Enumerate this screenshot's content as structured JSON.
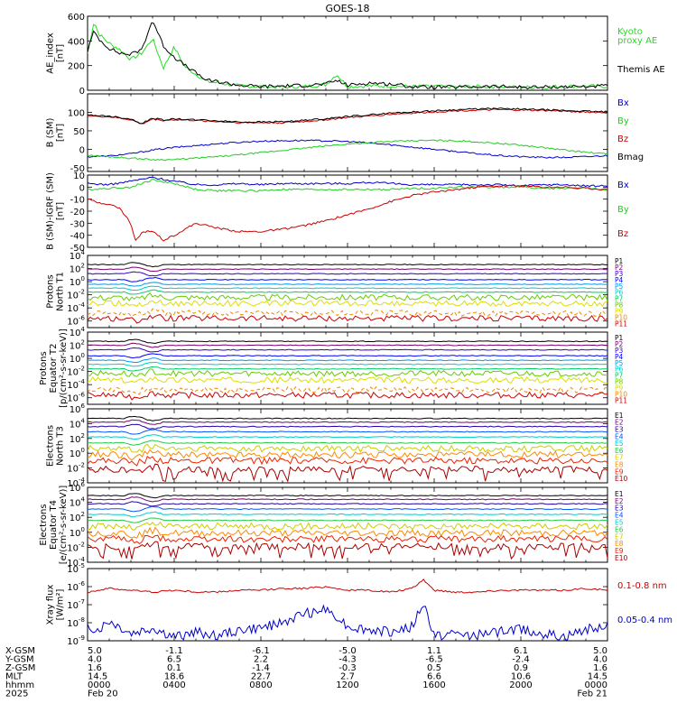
{
  "title": "GOES-18",
  "chart_data": [
    {
      "id": "ae",
      "type": "line",
      "ylabel": [
        "AE_index",
        "[nT]"
      ],
      "ylim": [
        0,
        600
      ],
      "ticks": [
        0,
        200,
        400,
        600
      ],
      "legend": [
        {
          "text": "Kyoto",
          "color": "#22dd22"
        },
        {
          "text": "proxy AE",
          "color": "#22dd22"
        },
        {
          "text": "Themis AE",
          "color": "#000000"
        }
      ],
      "series": [
        {
          "name": "Kyoto proxy AE",
          "color": "#22dd22",
          "x": [
            0,
            0.3,
            0.5,
            1,
            1.5,
            2,
            2.5,
            3,
            3.5,
            4,
            4.5,
            5,
            5.5,
            6,
            7,
            8,
            9,
            10,
            11,
            11.5,
            12,
            13,
            14,
            15,
            16,
            17,
            18,
            19,
            20,
            21,
            22,
            23,
            24
          ],
          "y": [
            300,
            560,
            460,
            380,
            330,
            250,
            300,
            420,
            180,
            350,
            190,
            130,
            70,
            60,
            35,
            30,
            25,
            30,
            45,
            130,
            30,
            35,
            35,
            30,
            30,
            25,
            30,
            30,
            25,
            25,
            30,
            35,
            30
          ]
        },
        {
          "name": "Themis AE",
          "color": "#000000",
          "x": [
            0,
            0.3,
            0.5,
            1,
            1.5,
            2,
            2.5,
            3,
            3.5,
            4,
            4.5,
            5,
            5.5,
            6,
            7,
            8,
            9,
            10,
            11,
            11.5,
            12,
            13,
            14,
            15,
            16,
            17,
            18,
            19,
            20,
            21,
            22,
            23,
            24
          ],
          "y": [
            320,
            480,
            420,
            340,
            300,
            290,
            330,
            570,
            360,
            270,
            200,
            140,
            80,
            70,
            40,
            30,
            35,
            40,
            50,
            80,
            40,
            60,
            50,
            30,
            25,
            25,
            30,
            30,
            25,
            25,
            30,
            30,
            35
          ]
        }
      ]
    },
    {
      "id": "bsm",
      "type": "line",
      "ylabel": [
        "B (SM)",
        "[nT]"
      ],
      "ylim": [
        -60,
        150
      ],
      "ticks": [
        -50,
        0,
        50,
        100
      ],
      "legend": [
        {
          "text": "Bx",
          "color": "#0000cc"
        },
        {
          "text": "By",
          "color": "#22cc22"
        },
        {
          "text": "Bz",
          "color": "#cc0000"
        },
        {
          "text": "Bmag",
          "color": "#000000"
        }
      ],
      "series": [
        {
          "name": "Bx",
          "color": "#0000cc",
          "x": [
            0,
            1,
            2,
            3,
            4,
            5,
            6,
            7,
            8,
            9,
            10,
            11,
            12,
            13,
            14,
            15,
            16,
            17,
            18,
            19,
            20,
            21,
            22,
            23,
            24
          ],
          "y": [
            -20,
            -18,
            -12,
            -2,
            5,
            10,
            15,
            19,
            22,
            23,
            24,
            23,
            21,
            17,
            12,
            6,
            0,
            -6,
            -12,
            -17,
            -20,
            -22,
            -22,
            -20,
            -17
          ]
        },
        {
          "name": "By",
          "color": "#22cc22",
          "x": [
            0,
            1,
            2,
            3,
            4,
            5,
            6,
            7,
            8,
            9,
            10,
            11,
            12,
            13,
            14,
            15,
            16,
            17,
            18,
            19,
            20,
            21,
            22,
            23,
            24
          ],
          "y": [
            -16,
            -20,
            -24,
            -28,
            -28,
            -24,
            -20,
            -15,
            -9,
            -3,
            3,
            9,
            14,
            18,
            21,
            23,
            24,
            23,
            20,
            16,
            11,
            5,
            -2,
            -8,
            -13
          ]
        },
        {
          "name": "Bz",
          "color": "#cc0000",
          "x": [
            0,
            1,
            2,
            2.5,
            3,
            3.5,
            4,
            5,
            6,
            7,
            8,
            9,
            10,
            11,
            12,
            13,
            14,
            15,
            16,
            17,
            18,
            19,
            20,
            21,
            22,
            23,
            24
          ],
          "y": [
            90,
            88,
            80,
            68,
            82,
            78,
            80,
            78,
            75,
            72,
            72,
            72,
            75,
            80,
            86,
            90,
            95,
            98,
            101,
            104,
            106,
            107,
            106,
            105,
            103,
            101,
            99
          ]
        },
        {
          "name": "Bmag",
          "color": "#000000",
          "x": [
            0,
            1,
            2,
            2.5,
            3,
            3.5,
            4,
            5,
            6,
            7,
            8,
            9,
            10,
            11,
            12,
            13,
            14,
            15,
            16,
            17,
            18,
            19,
            20,
            21,
            22,
            23,
            24
          ],
          "y": [
            92,
            90,
            82,
            70,
            84,
            80,
            82,
            80,
            77,
            74,
            74,
            75,
            78,
            83,
            89,
            93,
            98,
            101,
            104,
            107,
            109,
            110,
            109,
            107,
            105,
            103,
            101
          ]
        }
      ]
    },
    {
      "id": "bdiff",
      "type": "line",
      "ylabel": [
        "B (SM)-IGRF (SM)",
        "[nT]"
      ],
      "ylim": [
        -50,
        10
      ],
      "ticks": [
        -50,
        -40,
        -30,
        -20,
        -10,
        0,
        10
      ],
      "legend": [
        {
          "text": "Bx",
          "color": "#0000cc"
        },
        {
          "text": "By",
          "color": "#22cc22"
        },
        {
          "text": "Bz",
          "color": "#cc0000"
        }
      ],
      "series": [
        {
          "name": "Bx",
          "color": "#0000cc",
          "x": [
            0,
            1,
            2,
            3,
            4,
            5,
            6,
            7,
            8,
            9,
            10,
            11,
            12,
            13,
            14,
            15,
            16,
            17,
            18,
            19,
            20,
            21,
            22,
            23,
            24
          ],
          "y": [
            3,
            2,
            5,
            8,
            5,
            2,
            2,
            3,
            2,
            3,
            3,
            3,
            3,
            4,
            3,
            2,
            2,
            2,
            2,
            2,
            1,
            2,
            2,
            1,
            1
          ]
        },
        {
          "name": "By",
          "color": "#22cc22",
          "x": [
            0,
            1,
            2,
            3,
            4,
            5,
            6,
            7,
            8,
            9,
            10,
            11,
            12,
            13,
            14,
            15,
            16,
            17,
            18,
            19,
            20,
            21,
            22,
            23,
            24
          ],
          "y": [
            -2,
            -1,
            0,
            6,
            3,
            -2,
            -3,
            -3,
            -3,
            -2,
            -2,
            -2,
            -2,
            -2,
            -2,
            -1,
            -1,
            0,
            0,
            0,
            0,
            -1,
            -1,
            -1,
            -2
          ]
        },
        {
          "name": "Bz",
          "color": "#cc0000",
          "x": [
            0,
            0.5,
            1,
            1.5,
            2,
            2.2,
            2.5,
            3,
            3.5,
            4,
            5,
            6,
            7,
            8,
            9,
            10,
            11,
            12,
            13,
            14,
            15,
            16,
            17,
            18,
            19,
            20,
            21,
            22,
            23,
            24
          ],
          "y": [
            -10,
            -13,
            -14,
            -18,
            -30,
            -45,
            -38,
            -36,
            -44,
            -40,
            -30,
            -34,
            -37,
            -37,
            -35,
            -32,
            -28,
            -23,
            -18,
            -12,
            -7,
            -4,
            -2,
            0,
            1,
            1,
            0,
            0,
            -1,
            -2
          ]
        }
      ]
    },
    {
      "id": "p_north",
      "type": "line",
      "log": true,
      "ylabel": [
        "Protons",
        "North T1"
      ],
      "ylim_exp": [
        -7,
        4
      ],
      "tick_exps": [
        -6,
        -4,
        -2,
        0,
        2,
        4
      ],
      "channels": [
        "P1",
        "P2",
        "P3",
        "P4",
        "P5",
        "P6",
        "P7",
        "P8",
        "P9",
        "P10",
        "P11"
      ],
      "levels_exp": [
        2.6,
        1.9,
        1.2,
        0.3,
        -0.4,
        -1.0,
        -1.6,
        -2.4,
        -3.3,
        -4.8,
        -5.6
      ]
    },
    {
      "id": "p_eq",
      "type": "line",
      "log": true,
      "ylabel": [
        "Protons",
        "Equator T2",
        "[p/(cm²-s-sr-keV)]"
      ],
      "ylim_exp": [
        -7,
        4
      ],
      "tick_exps": [
        -6,
        -4,
        -2,
        0,
        2,
        4
      ],
      "channels": [
        "P1",
        "P2",
        "P3",
        "P4",
        "P5",
        "P6",
        "P7",
        "P8",
        "P9",
        "P10",
        "P11"
      ],
      "levels_exp": [
        2.6,
        2.0,
        1.3,
        0.4,
        -0.3,
        -0.9,
        -1.6,
        -2.3,
        -3.3,
        -4.8,
        -5.6
      ]
    },
    {
      "id": "e_north",
      "type": "line",
      "log": true,
      "ylabel": [
        "Electrons",
        "North T3"
      ],
      "ylim_exp": [
        -4,
        6
      ],
      "tick_exps": [
        -4,
        -2,
        0,
        2,
        4,
        6
      ],
      "channels": [
        "E1",
        "E2",
        "E3",
        "E4",
        "E5",
        "E6",
        "E7",
        "E8",
        "E9",
        "E10"
      ],
      "levels_exp": [
        4.7,
        4.2,
        3.6,
        2.9,
        2.2,
        1.4,
        0.6,
        -0.2,
        -1.0,
        -2.2
      ]
    },
    {
      "id": "e_eq",
      "type": "line",
      "log": true,
      "ylabel": [
        "Electrons",
        "Equator T4",
        "[e/(cm²-s-sr-keV)]"
      ],
      "ylim_exp": [
        -4,
        6
      ],
      "tick_exps": [
        -4,
        -2,
        0,
        2,
        4,
        6
      ],
      "channels": [
        "E1",
        "E2",
        "E3",
        "E4",
        "E5",
        "E6",
        "E7",
        "E8",
        "E9",
        "E10"
      ],
      "levels_exp": [
        4.9,
        4.4,
        3.8,
        3.1,
        2.4,
        1.6,
        0.8,
        -0.1,
        -0.9,
        -1.9
      ]
    },
    {
      "id": "xray",
      "type": "line",
      "log": true,
      "ylabel": [
        "Xray flux",
        "[W/m²]"
      ],
      "ylim_exp": [
        -9,
        -5
      ],
      "tick_exps": [
        -9,
        -8,
        -7,
        -6,
        -5
      ],
      "legend": [
        {
          "text": "0.1-0.8 nm",
          "color": "#cc0000"
        },
        {
          "text": "0.05-0.4 nm",
          "color": "#0000cc"
        }
      ],
      "series": [
        {
          "name": "0.1-0.8 nm",
          "color": "#cc0000",
          "x": [
            0,
            1,
            2,
            3,
            4,
            5,
            6,
            7,
            8,
            9,
            10,
            11,
            12,
            13,
            14,
            15,
            15.5,
            16,
            17,
            18,
            19,
            20,
            21,
            22,
            23,
            24
          ],
          "y_exp": [
            -6.3,
            -6.1,
            -6.2,
            -6.3,
            -6.2,
            -6.3,
            -6.3,
            -6.2,
            -6.2,
            -6.1,
            -6.1,
            -6.0,
            -6.2,
            -6.2,
            -6.3,
            -6.1,
            -5.6,
            -6.2,
            -6.3,
            -6.3,
            -6.2,
            -6.2,
            -6.2,
            -6.2,
            -6.1,
            -6.2
          ]
        },
        {
          "name": "0.05-0.4 nm",
          "color": "#0000cc",
          "x": [
            0,
            0.5,
            1,
            2,
            3,
            4,
            5,
            6,
            7,
            8,
            9,
            10,
            11,
            11.5,
            12,
            13,
            14,
            15,
            15.5,
            16,
            17,
            18,
            19,
            20,
            21,
            22,
            23,
            24
          ],
          "y_exp": [
            -8.2,
            -8.4,
            -7.9,
            -8.6,
            -8.3,
            -8.8,
            -8.5,
            -8.7,
            -8.4,
            -8.3,
            -8.0,
            -7.5,
            -7.3,
            -7.6,
            -8.2,
            -8.4,
            -8.5,
            -8.2,
            -6.9,
            -8.7,
            -8.6,
            -8.7,
            -8.5,
            -8.3,
            -8.6,
            -8.8,
            -8.4,
            -8.1
          ]
        }
      ]
    }
  ],
  "orbit": {
    "labels": [
      "X-GSM",
      "Y-GSM",
      "Z-GSM",
      "MLT",
      "hhmm",
      "2025"
    ],
    "columns": [
      [
        "5.0",
        "4.0",
        "1.6",
        "14.5",
        "0000",
        "Feb 20"
      ],
      [
        "-1.1",
        "6.5",
        "0.1",
        "18.6",
        "0400",
        ""
      ],
      [
        "-6.1",
        "2.2",
        "-1.4",
        "22.7",
        "0800",
        ""
      ],
      [
        "-5.0",
        "-4.3",
        "-0.3",
        "2.7",
        "1200",
        ""
      ],
      [
        "1.1",
        "-6.5",
        "0.5",
        "6.6",
        "1600",
        ""
      ],
      [
        "6.1",
        "-2.4",
        "0.9",
        "10.6",
        "2000",
        ""
      ],
      [
        "5.0",
        "4.0",
        "1.6",
        "14.5",
        "0000",
        "Feb 21"
      ]
    ]
  },
  "colors": {
    "proton_channels": [
      "#000000",
      "#7a0070",
      "#3300cc",
      "#0000ff",
      "#0099ee",
      "#00cccc",
      "#00cc66",
      "#66cc00",
      "#dddd00",
      "#ee8800",
      "#cc0000"
    ],
    "electron_channels": [
      "#000000",
      "#7a0070",
      "#2200aa",
      "#0055ff",
      "#00cccc",
      "#22cc44",
      "#cccc00",
      "#ff8800",
      "#ee2200",
      "#aa0000"
    ]
  }
}
